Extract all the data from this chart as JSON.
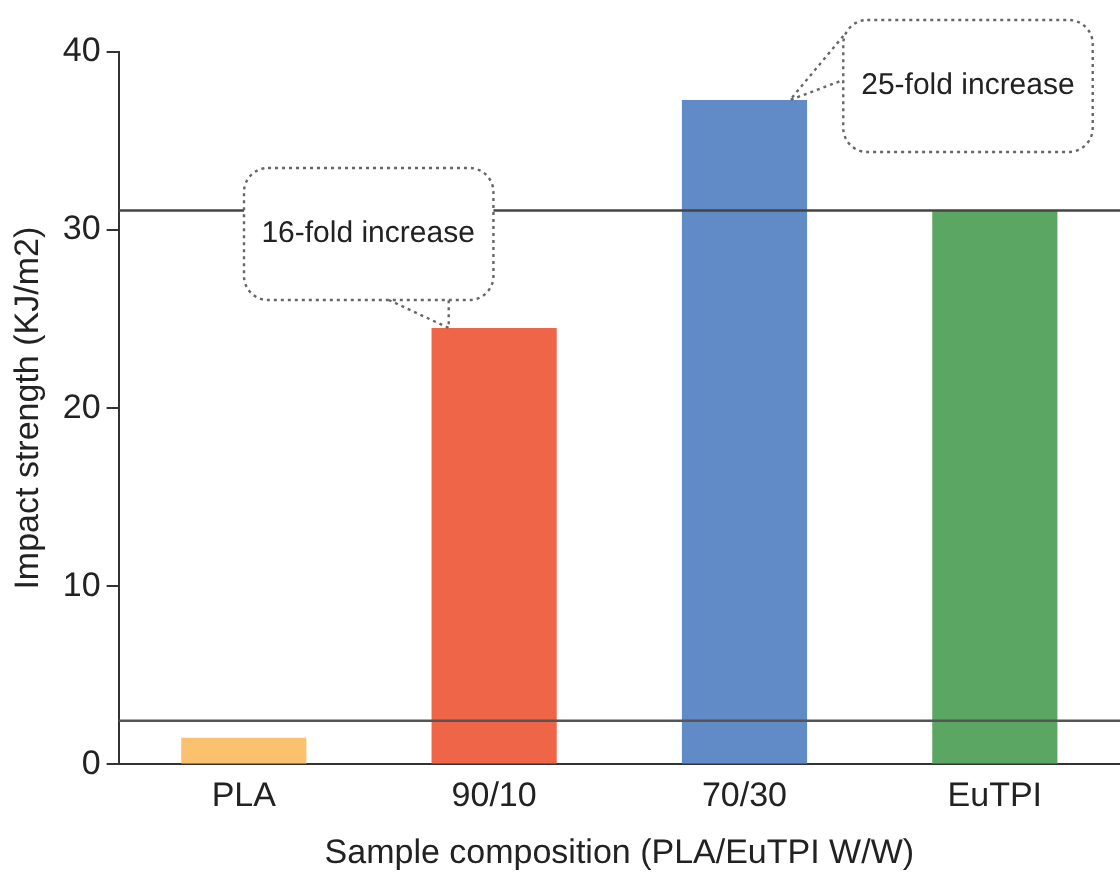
{
  "chart_data": {
    "type": "bar",
    "xlabel": "Sample composition (PLA/EuTPI W/W)",
    "ylabel": "Impact strength (KJ/m2)",
    "categories": [
      "PLA",
      "90/10",
      "70/30",
      "EuTPI"
    ],
    "values": [
      1.5,
      24.5,
      37.3,
      31.1
    ],
    "colors": [
      "#fbc16e",
      "#ef6548",
      "#618bc7",
      "#5ca664"
    ],
    "ylim": [
      0,
      40
    ],
    "yticks": [
      0,
      10,
      20,
      30,
      40
    ],
    "grid": false,
    "legend": false,
    "ref_lines": [
      {
        "axis": "y",
        "value": 31.1,
        "color": "#444444"
      },
      {
        "axis": "y",
        "value": 2.45,
        "color": "#555555"
      }
    ],
    "annotations": [
      {
        "text": "16-fold increase",
        "x": "90/10",
        "y": 24.5
      },
      "25-fold increase"
    ]
  }
}
